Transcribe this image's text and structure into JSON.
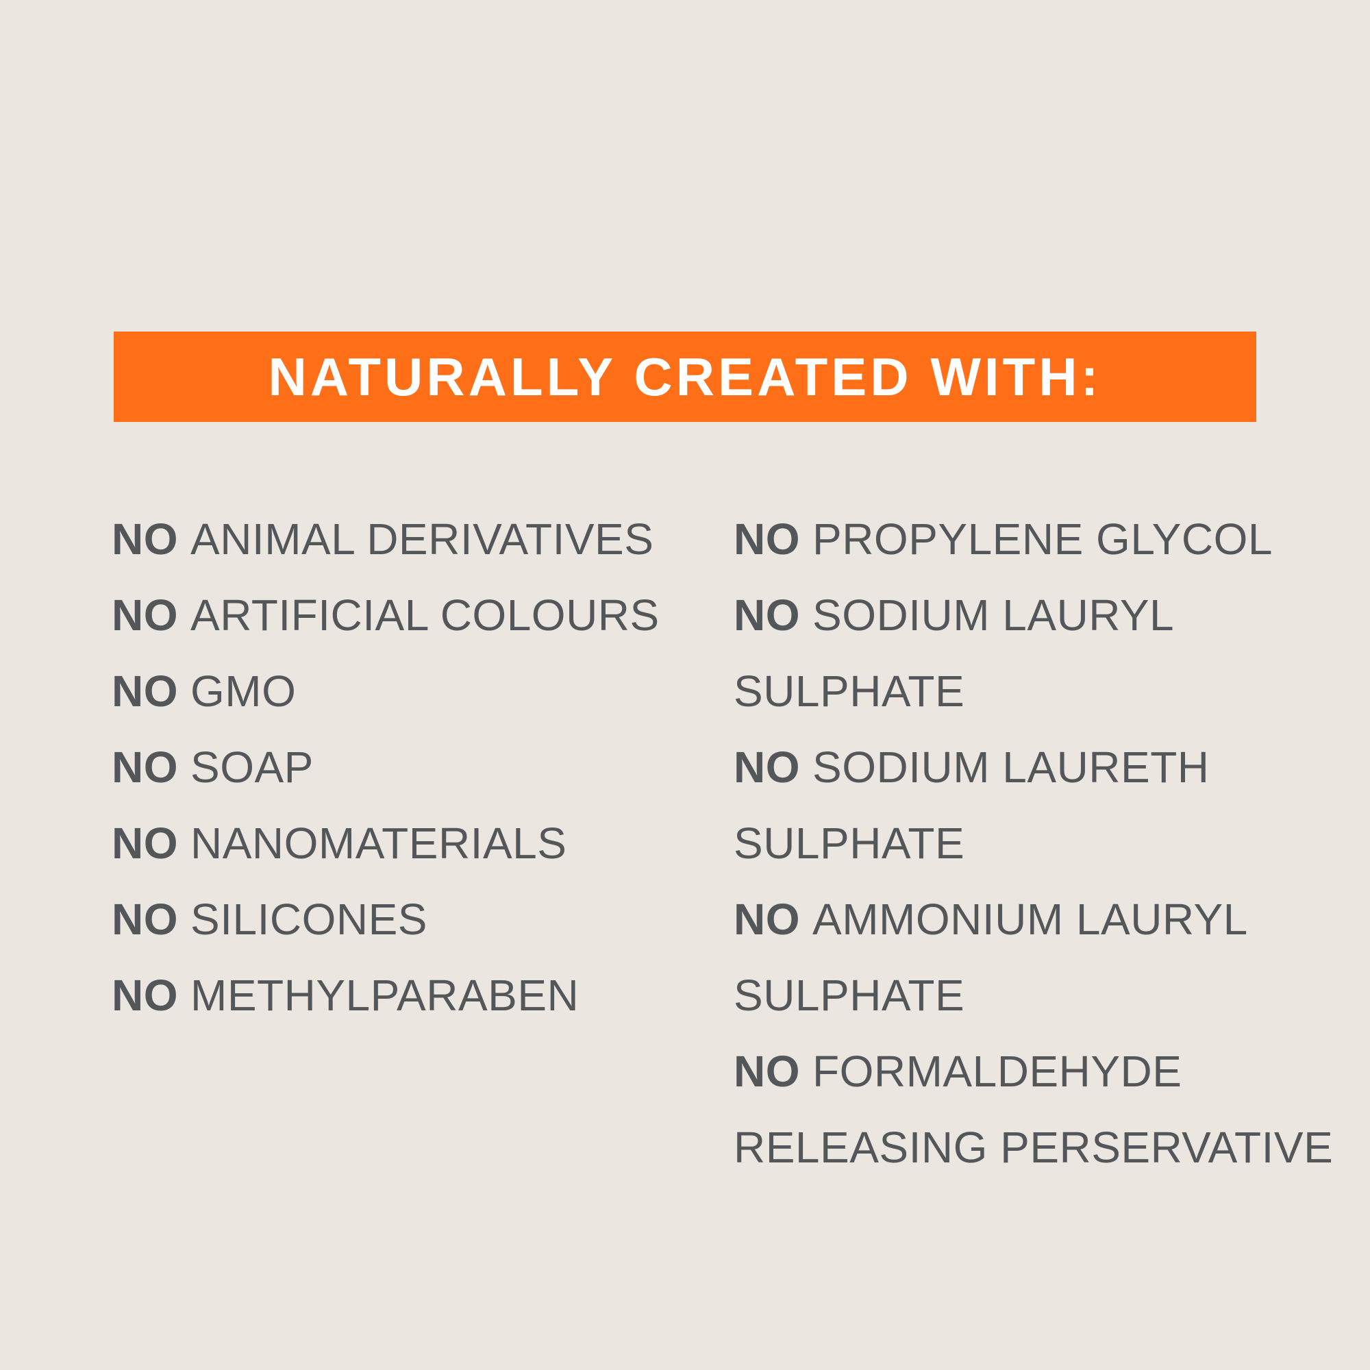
{
  "banner": {
    "title": "NATURALLY CREATED WITH:",
    "color": "#ff6f17"
  },
  "colors": {
    "background": "#ebe6e0",
    "text": "#54575a"
  },
  "left_column": [
    {
      "prefix": "NO",
      "text": "ANIMAL DERIVATIVES"
    },
    {
      "prefix": "NO",
      "text": "ARTIFICIAL COLOURS"
    },
    {
      "prefix": "NO",
      "text": "GMO"
    },
    {
      "prefix": "NO",
      "text": "SOAP"
    },
    {
      "prefix": "NO",
      "text": "NANOMATERIALS"
    },
    {
      "prefix": "NO",
      "text": "SILICONES"
    },
    {
      "prefix": "NO",
      "text": "METHYLPARABEN"
    }
  ],
  "right_column": [
    {
      "prefix": "NO",
      "text": "PROPYLENE GLYCOL"
    },
    {
      "prefix": "NO",
      "text": "SODIUM LAURYL"
    },
    {
      "prefix": "",
      "text": "SULPHATE"
    },
    {
      "prefix": "NO",
      "text": "SODIUM LAURETH"
    },
    {
      "prefix": "",
      "text": "SULPHATE"
    },
    {
      "prefix": "NO",
      "text": "AMMONIUM LAURYL"
    },
    {
      "prefix": "",
      "text": "SULPHATE"
    },
    {
      "prefix": "NO",
      "text": "FORMALDEHYDE"
    },
    {
      "prefix": "",
      "text": "RELEASING PERSERVATIVE"
    }
  ]
}
